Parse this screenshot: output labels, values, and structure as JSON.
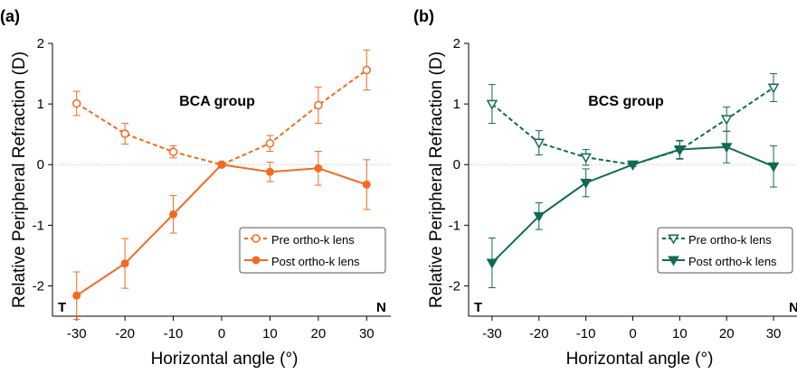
{
  "chart_data": [
    {
      "type": "line",
      "panel": "(a)",
      "group_label": "BCA group",
      "xlabel": "Horizontal angle (°)",
      "ylabel": "Relative Peripheral Refraction (D)",
      "x": [
        -30,
        -20,
        -10,
        0,
        10,
        20,
        30
      ],
      "xticks": [
        "-30",
        "-20",
        "-10",
        "0",
        "10",
        "20",
        "30"
      ],
      "yticks": [
        "-2",
        "-1",
        "0",
        "1",
        "2"
      ],
      "xlim": [
        -35,
        35
      ],
      "ylim": [
        -2.5,
        2
      ],
      "corner_left": "T",
      "corner_right": "N",
      "color": "#f26b21",
      "legend_position": "lower-right",
      "series": [
        {
          "name": "Pre ortho-k lens",
          "style": "dashed",
          "marker": "open-circle",
          "values": [
            1.01,
            0.51,
            0.21,
            0.0,
            0.35,
            0.98,
            1.56
          ],
          "err": [
            0.2,
            0.17,
            0.1,
            0.02,
            0.13,
            0.3,
            0.33
          ]
        },
        {
          "name": "Post ortho-k lens",
          "style": "solid",
          "marker": "filled-circle",
          "values": [
            -2.16,
            -1.63,
            -0.82,
            0.0,
            -0.12,
            -0.06,
            -0.33
          ],
          "err": [
            0.39,
            0.41,
            0.31,
            0.03,
            0.16,
            0.28,
            0.41
          ]
        }
      ]
    },
    {
      "type": "line",
      "panel": "(b)",
      "group_label": "BCS group",
      "xlabel": "Horizontal angle (°)",
      "ylabel": "Relative Peripheral Refraction (D)",
      "x": [
        -30,
        -20,
        -10,
        0,
        10,
        20,
        30
      ],
      "xticks": [
        "-30",
        "-20",
        "-10",
        "0",
        "10",
        "20",
        "30"
      ],
      "yticks": [
        "-2",
        "-1",
        "0",
        "1",
        "2"
      ],
      "xlim": [
        -35,
        35
      ],
      "ylim": [
        -2.5,
        2
      ],
      "corner_left": "T",
      "corner_right": "N",
      "color": "#106b50",
      "legend_position": "lower-right",
      "series": [
        {
          "name": "Pre ortho-k lens",
          "style": "dashed",
          "marker": "open-triangle-down",
          "values": [
            1.0,
            0.36,
            0.12,
            0.0,
            0.24,
            0.75,
            1.27
          ],
          "err": [
            0.32,
            0.2,
            0.13,
            0.02,
            0.15,
            0.2,
            0.23
          ]
        },
        {
          "name": "Post ortho-k lens",
          "style": "solid",
          "marker": "filled-triangle-down",
          "values": [
            -1.62,
            -0.85,
            -0.3,
            0.0,
            0.25,
            0.29,
            -0.03
          ],
          "err": [
            0.41,
            0.22,
            0.23,
            0.03,
            0.15,
            0.26,
            0.34
          ]
        }
      ]
    }
  ]
}
